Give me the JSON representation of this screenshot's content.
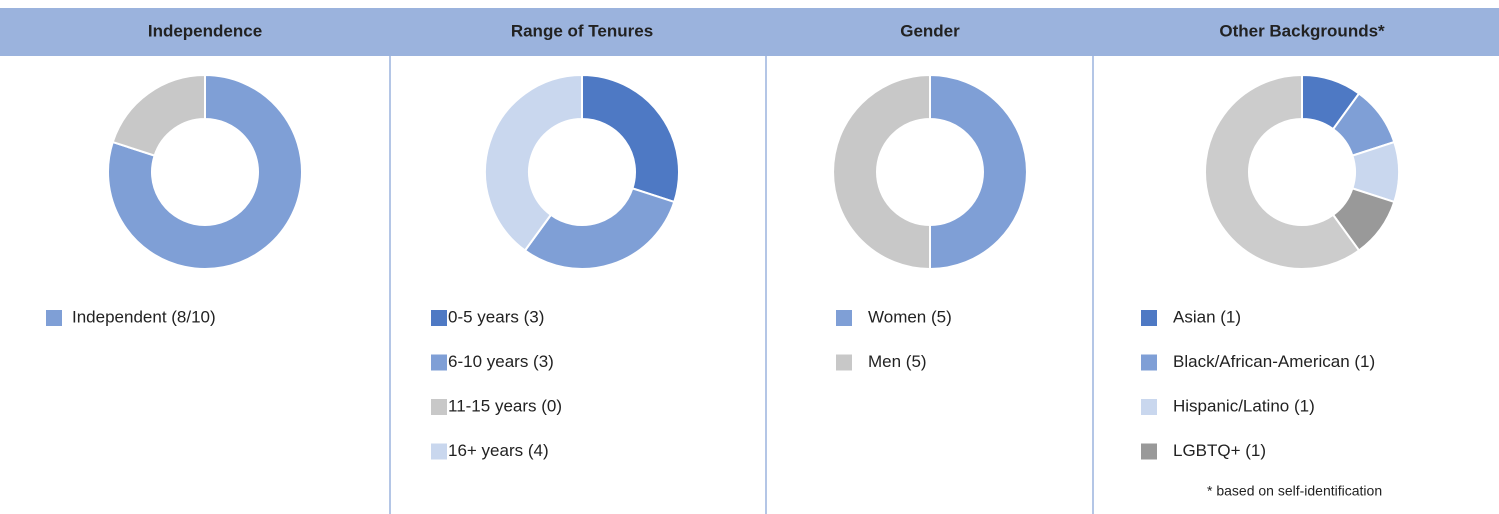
{
  "chart_data": [
    {
      "type": "donut",
      "title": "Independence",
      "categories": [
        "Independent (8/10)",
        null
      ],
      "values": [
        8,
        2
      ],
      "colors": [
        "#7f9fd6",
        "#c8c8c8"
      ]
    },
    {
      "type": "donut",
      "title": "Range of Tenures",
      "categories": [
        "0-5 years (3)",
        "6-10 years (3)",
        "11-15 years (0)",
        "16+ years (4)"
      ],
      "values": [
        3,
        3,
        0,
        4
      ],
      "colors": [
        "#4e79c4",
        "#7f9fd6",
        "#c8c8c8",
        "#c9d7ee"
      ]
    },
    {
      "type": "donut",
      "title": "Gender",
      "categories": [
        "Women (5)",
        "Men (5)"
      ],
      "values": [
        5,
        5
      ],
      "colors": [
        "#7f9fd6",
        "#c8c8c8"
      ]
    },
    {
      "type": "donut",
      "title": "Other Backgrounds*",
      "categories": [
        "Asian (1)",
        "Black/African-American (1)",
        "Hispanic/Latino (1)",
        "LGBTQ+ (1)",
        null
      ],
      "values": [
        1,
        1,
        1,
        1,
        6
      ],
      "colors": [
        "#4e79c4",
        "#7f9fd6",
        "#c9d7ee",
        "#999999",
        "#cccccc"
      ],
      "note": "* based on self-identification"
    }
  ]
}
